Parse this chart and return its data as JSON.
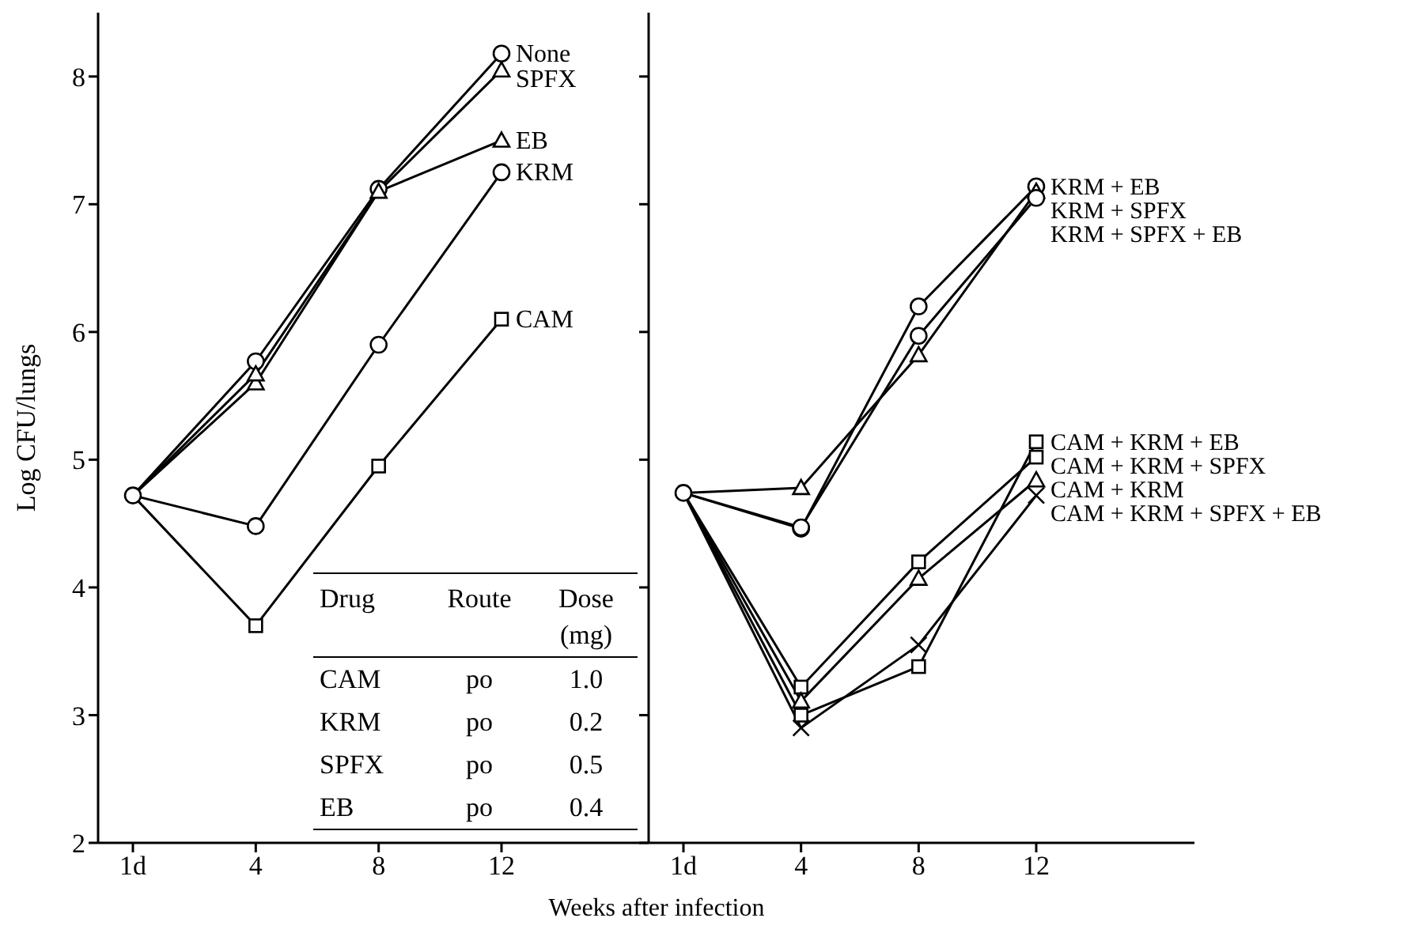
{
  "chart_data": [
    {
      "type": "line",
      "ylabel": "Log CFU/lungs",
      "xlabel": "Weeks after infection",
      "categories": [
        "1d",
        "4",
        "8",
        "12"
      ],
      "ylim": [
        2,
        8.5
      ],
      "yticks": [
        2,
        3,
        4,
        5,
        6,
        7,
        8
      ],
      "annotations": [
        "Drug",
        "Route",
        "Dose (mg)",
        "CAM",
        "po",
        "1.0",
        "KRM",
        "po",
        "0.2",
        "SPFX",
        "po",
        "0.5",
        "EB",
        "po",
        "0.4"
      ],
      "series": [
        {
          "name": "None",
          "color": "#000000",
          "marker": "circle",
          "values": [
            4.72,
            5.77,
            7.12,
            8.18
          ]
        },
        {
          "name": "SPFX",
          "color": "#000000",
          "marker": "triangle",
          "values": [
            4.72,
            5.6,
            7.1,
            8.05
          ]
        },
        {
          "name": "EB",
          "color": "#000000",
          "marker": "triangle",
          "values": [
            4.72,
            5.67,
            7.1,
            7.5
          ]
        },
        {
          "name": "KRM",
          "color": "#000000",
          "marker": "circle",
          "values": [
            4.72,
            4.48,
            5.9,
            7.25
          ]
        },
        {
          "name": "CAM",
          "color": "#000000",
          "marker": "square",
          "values": [
            4.72,
            3.7,
            4.95,
            6.1
          ]
        }
      ]
    },
    {
      "type": "line",
      "categories": [
        "1d",
        "4",
        "8",
        "12"
      ],
      "ylim": [
        2,
        8.5
      ],
      "yticks": [
        2,
        3,
        4,
        5,
        6,
        7,
        8
      ],
      "tick_labels": "x",
      "series": [
        {
          "name": "KRM + EB",
          "color": "#000000",
          "marker": "circle",
          "values": [
            4.74,
            4.46,
            6.2,
            7.14
          ]
        },
        {
          "name": "KRM + SPFX",
          "color": "#000000",
          "marker": "triangle",
          "values": [
            4.74,
            4.78,
            5.82,
            7.1
          ]
        },
        {
          "name": "KRM + SPFX + EB",
          "color": "#000000",
          "marker": "circle",
          "values": [
            4.74,
            4.47,
            5.97,
            7.05
          ]
        },
        {
          "name": "CAM + KRM + EB",
          "color": "#000000",
          "marker": "square",
          "values": [
            4.74,
            3.0,
            3.38,
            5.14
          ]
        },
        {
          "name": "CAM + KRM + SPFX",
          "color": "#000000",
          "marker": "square",
          "values": [
            4.74,
            3.22,
            4.2,
            5.02
          ]
        },
        {
          "name": "CAM + KRM",
          "color": "#000000",
          "marker": "triangle",
          "values": [
            4.74,
            3.11,
            4.07,
            4.84
          ]
        },
        {
          "name": "CAM + KRM + SPFX + EB",
          "color": "#000000",
          "marker": "cross",
          "values": [
            4.74,
            2.9,
            3.55,
            4.72
          ]
        }
      ]
    }
  ]
}
